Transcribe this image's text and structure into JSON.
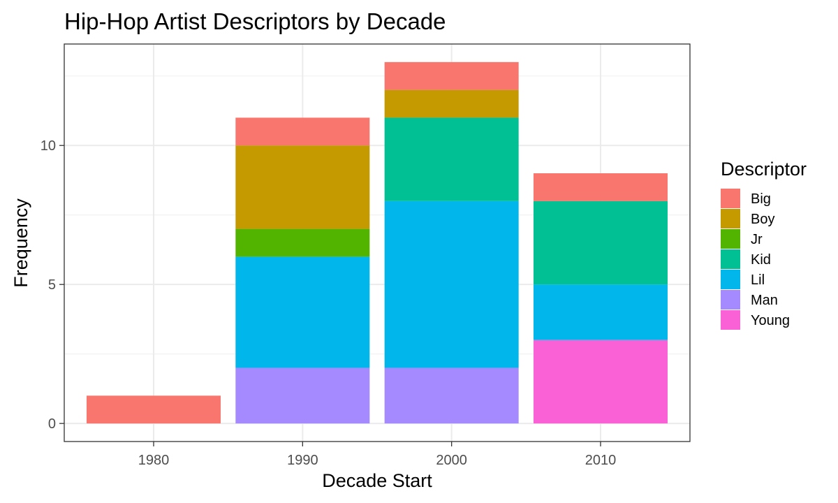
{
  "chart_data": {
    "type": "bar",
    "stacked": true,
    "title": "Hip-Hop Artist Descriptors by Decade",
    "xlabel": "Decade Start",
    "ylabel": "Frequency",
    "categories": [
      "1980",
      "1990",
      "2000",
      "2010"
    ],
    "y_ticks": [
      "0",
      "5",
      "10"
    ],
    "y_tick_values": [
      0,
      5,
      10
    ],
    "ylim": [
      -0.65,
      13.65
    ],
    "grid": true,
    "legend": {
      "title": "Descriptor",
      "position": "right"
    },
    "series": [
      {
        "name": "Big",
        "color": "#F8766D",
        "values": [
          1,
          1,
          1,
          1
        ]
      },
      {
        "name": "Boy",
        "color": "#C49A00",
        "values": [
          0,
          3,
          1,
          0
        ]
      },
      {
        "name": "Jr",
        "color": "#53B400",
        "values": [
          0,
          1,
          0,
          0
        ]
      },
      {
        "name": "Kid",
        "color": "#00C094",
        "values": [
          0,
          0,
          3,
          3
        ]
      },
      {
        "name": "Lil",
        "color": "#00B6EB",
        "values": [
          0,
          4,
          6,
          2
        ]
      },
      {
        "name": "Man",
        "color": "#A58AFF",
        "values": [
          0,
          2,
          2,
          0
        ]
      },
      {
        "name": "Young",
        "color": "#FB61D7",
        "values": [
          0,
          0,
          0,
          3
        ]
      }
    ]
  }
}
